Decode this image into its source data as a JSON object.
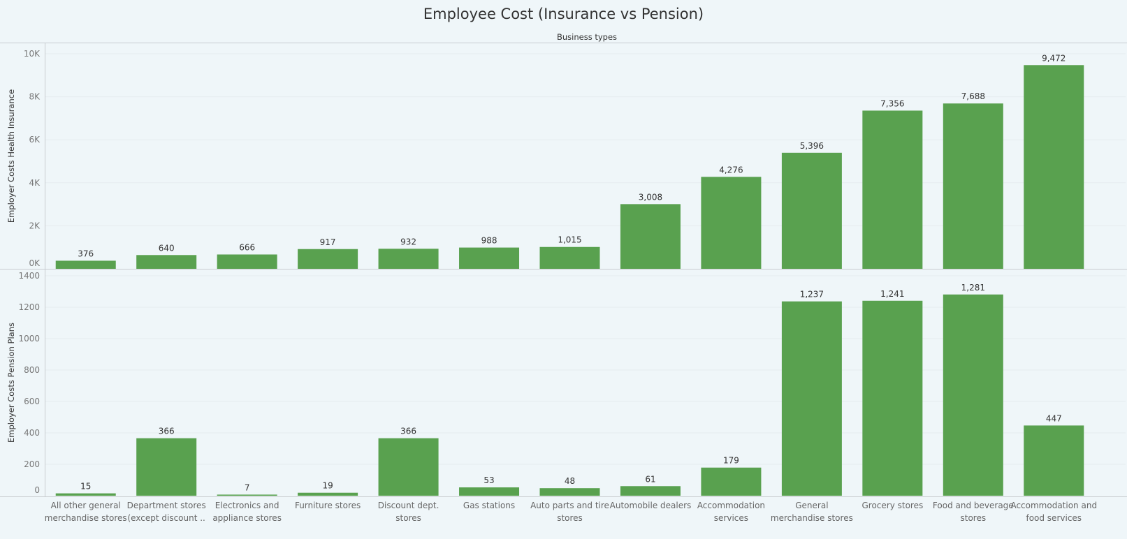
{
  "chart_data": {
    "type": "bar",
    "title": "Employee Cost (Insurance vs Pension)",
    "column_header": "Business types",
    "categories": [
      [
        "All other general",
        "merchandise stores"
      ],
      [
        "Department stores",
        "(except discount .."
      ],
      [
        "Electronics and",
        "appliance stores"
      ],
      [
        "Furniture stores"
      ],
      [
        "Discount dept.",
        "stores"
      ],
      [
        "Gas stations"
      ],
      [
        "Auto parts and tire",
        "stores"
      ],
      [
        "Automobile dealers"
      ],
      [
        "Accommodation",
        "services"
      ],
      [
        "General",
        "merchandise stores"
      ],
      [
        "Grocery stores"
      ],
      [
        "Food and beverage",
        "stores"
      ],
      [
        "Accommodation and",
        "food services"
      ]
    ],
    "panels": [
      {
        "ylabel": "Employer Costs Health Insurance",
        "ylim": [
          0,
          10000
        ],
        "ticks": [
          {
            "value": 0,
            "label": "0K"
          },
          {
            "value": 2000,
            "label": "2K"
          },
          {
            "value": 4000,
            "label": "4K"
          },
          {
            "value": 6000,
            "label": "6K"
          },
          {
            "value": 8000,
            "label": "8K"
          },
          {
            "value": 10000,
            "label": "10K"
          }
        ],
        "values": [
          376,
          640,
          666,
          917,
          932,
          988,
          1015,
          3008,
          4276,
          5396,
          7356,
          7688,
          9472
        ],
        "value_labels": [
          "376",
          "640",
          "666",
          "917",
          "932",
          "988",
          "1,015",
          "3,008",
          "4,276",
          "5,396",
          "7,356",
          "7,688",
          "9,472"
        ]
      },
      {
        "ylabel": "Employer Costs Pension Plans",
        "ylim": [
          0,
          1400
        ],
        "ticks": [
          {
            "value": 0,
            "label": "0"
          },
          {
            "value": 200,
            "label": "200"
          },
          {
            "value": 400,
            "label": "400"
          },
          {
            "value": 600,
            "label": "600"
          },
          {
            "value": 800,
            "label": "800"
          },
          {
            "value": 1000,
            "label": "1000"
          },
          {
            "value": 1200,
            "label": "1200"
          },
          {
            "value": 1400,
            "label": "1400"
          }
        ],
        "values": [
          15,
          366,
          7,
          19,
          366,
          53,
          48,
          61,
          179,
          1237,
          1241,
          1281,
          447
        ],
        "value_labels": [
          "15",
          "366",
          "7",
          "19",
          "366",
          "53",
          "48",
          "61",
          "179",
          "1,237",
          "1,241",
          "1,281",
          "447"
        ]
      }
    ],
    "bar_color": "#59a14f",
    "grid": true
  }
}
